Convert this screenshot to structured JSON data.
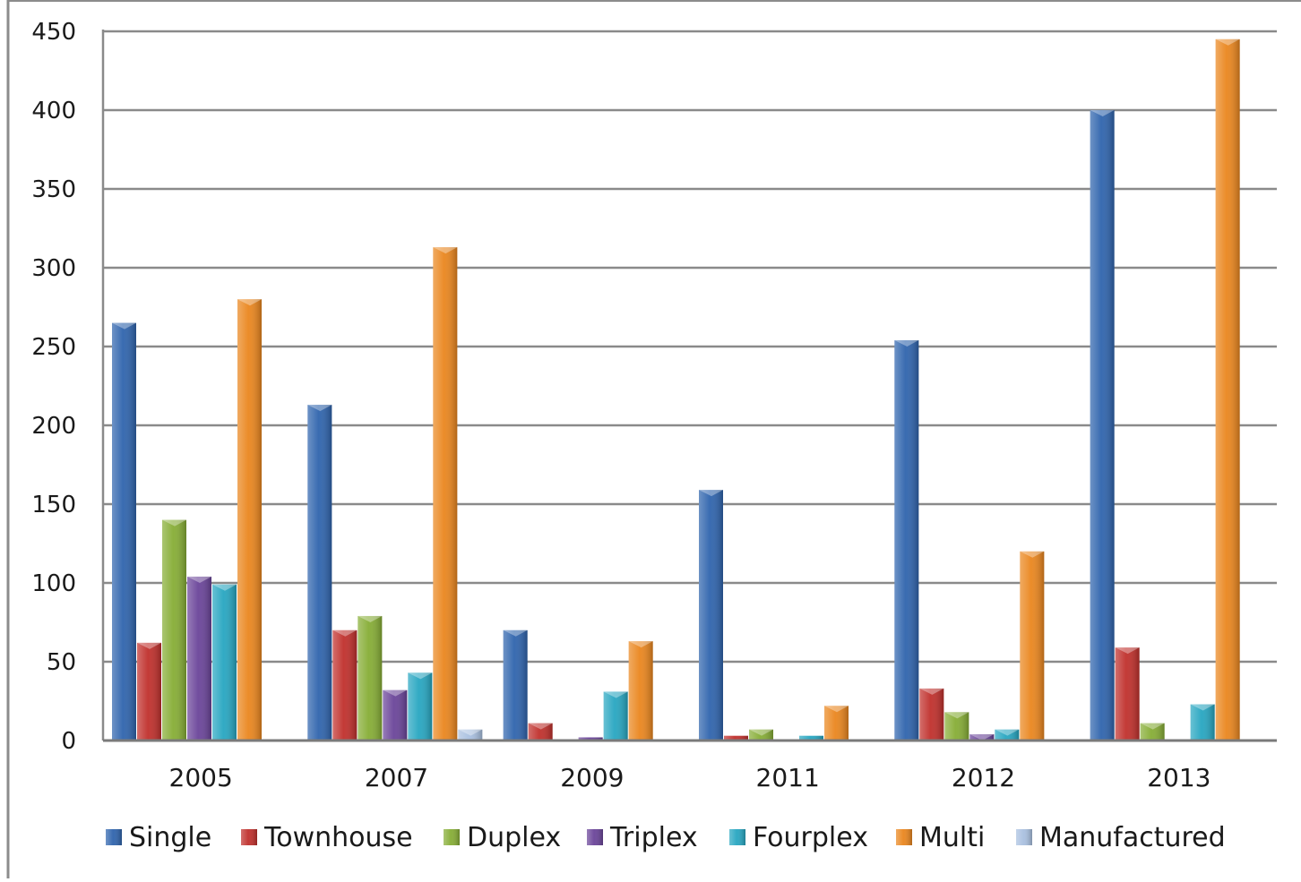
{
  "chart_data": {
    "type": "bar",
    "categories": [
      "2005",
      "2007",
      "2009",
      "2011",
      "2012",
      "2013"
    ],
    "series": [
      {
        "name": "Single",
        "color": "#2f64ad",
        "values": [
          265,
          213,
          70,
          159,
          254,
          400
        ]
      },
      {
        "name": "Townhouse",
        "color": "#c0302c",
        "values": [
          62,
          70,
          11,
          3,
          33,
          59
        ]
      },
      {
        "name": "Duplex",
        "color": "#86ad35",
        "values": [
          140,
          79,
          0,
          7,
          18,
          11
        ]
      },
      {
        "name": "Triplex",
        "color": "#6a4499",
        "values": [
          104,
          32,
          2,
          0,
          4,
          0
        ]
      },
      {
        "name": "Fourplex",
        "color": "#27a6c1",
        "values": [
          99,
          43,
          31,
          3,
          7,
          23
        ]
      },
      {
        "name": "Multi",
        "color": "#ea861e",
        "values": [
          280,
          313,
          63,
          22,
          120,
          445
        ]
      },
      {
        "name": "Manufactured",
        "color": "#a9c0e0",
        "values": [
          0,
          7,
          0,
          0,
          0,
          0
        ]
      }
    ],
    "ylim": [
      0,
      450
    ],
    "yticks": [
      "0",
      "50",
      "100",
      "150",
      "200",
      "250",
      "300",
      "350",
      "400",
      "450"
    ],
    "grid": true,
    "legend_position": "bottom",
    "title": "",
    "xlabel": "",
    "ylabel": ""
  }
}
